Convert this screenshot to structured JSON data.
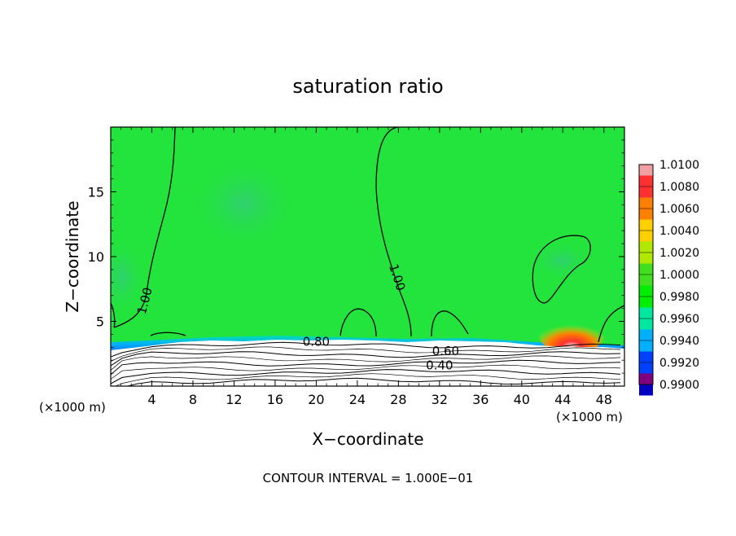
{
  "chart_data": {
    "type": "heatmap",
    "title": "saturation ratio",
    "xlabel": "X−coordinate",
    "ylabel": "Z−coordinate",
    "x_unit_left": "(×1000 m)",
    "x_unit_right": "(×1000 m)",
    "xlim": [
      0,
      50
    ],
    "ylim": [
      0,
      20
    ],
    "x_ticks": [
      4,
      8,
      12,
      16,
      20,
      24,
      28,
      32,
      36,
      40,
      44,
      48
    ],
    "y_ticks": [
      5,
      10,
      15
    ],
    "footer": "CONTOUR INTERVAL = 1.000E−01",
    "colorbar": {
      "levels": [
        "1.0100",
        "1.0080",
        "1.0060",
        "1.0040",
        "1.0020",
        "1.0000",
        "0.9980",
        "0.9960",
        "0.9940",
        "0.9920",
        "0.9900"
      ],
      "colors": [
        "#f0a0a0",
        "#ff3030",
        "#ff8000",
        "#ffd000",
        "#b0e800",
        "#40e020",
        "#00ee00",
        "#00e8a0",
        "#00b0ff",
        "#0040ff",
        "#0000c0",
        "#800080"
      ]
    },
    "contour_labels": [
      {
        "text": "1.00",
        "x": 3.7,
        "z": 6.5,
        "rotate": -75
      },
      {
        "text": "1.00",
        "x": 27.5,
        "z": 8.3,
        "rotate": 72
      },
      {
        "text": "0.80",
        "x": 20.0,
        "z": 3.1,
        "rotate": 0
      },
      {
        "text": "0.60",
        "x": 32.6,
        "z": 2.4,
        "rotate": 0
      },
      {
        "text": "0.40",
        "x": 32.0,
        "z": 1.3,
        "rotate": 0
      }
    ],
    "field_colors": {
      "background": "#22e43c",
      "light_band": "#28dc5a",
      "moist_patch": "#2cd864",
      "hotspot": [
        "#ff3030",
        "#ff8000",
        "#f8d8d8"
      ],
      "surface_band": [
        "#00a8ff",
        "#2050ff",
        "#00e0b0"
      ],
      "below": "#ffffff"
    }
  }
}
